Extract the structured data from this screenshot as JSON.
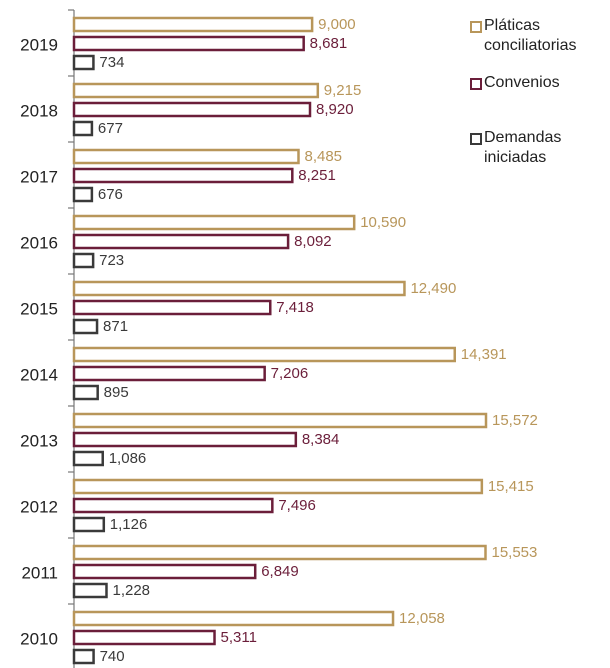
{
  "chart_data": {
    "type": "bar",
    "orientation": "horizontal",
    "categories": [
      "2019",
      "2018",
      "2017",
      "2016",
      "2015",
      "2014",
      "2013",
      "2012",
      "2011",
      "2010"
    ],
    "series": [
      {
        "name": "Pláticas conciliatorias",
        "color": "#b8965a",
        "values": [
          9000,
          9215,
          8485,
          10590,
          12490,
          14391,
          15572,
          15415,
          15553,
          12058
        ],
        "value_labels": [
          "9,000",
          "9,215",
          "8,485",
          "10,590",
          "12,490",
          "14,391",
          "15,572",
          "15,415",
          "15,553",
          "12,058"
        ]
      },
      {
        "name": "Convenios",
        "color": "#6b1e3a",
        "values": [
          8681,
          8920,
          8251,
          8092,
          7418,
          7206,
          8384,
          7496,
          6849,
          5311
        ],
        "value_labels": [
          "8,681",
          "8,920",
          "8,251",
          "8,092",
          "7,418",
          "7,206",
          "8,384",
          "7,496",
          "6,849",
          "5,311"
        ]
      },
      {
        "name": "Demandas iniciadas",
        "color": "#3a3a3a",
        "values": [
          734,
          677,
          676,
          723,
          871,
          895,
          1086,
          1126,
          1228,
          740
        ],
        "value_labels": [
          "734",
          "677",
          "676",
          "723",
          "871",
          "895",
          "1,086",
          "1,126",
          "1,228",
          "740"
        ]
      }
    ]
  }
}
